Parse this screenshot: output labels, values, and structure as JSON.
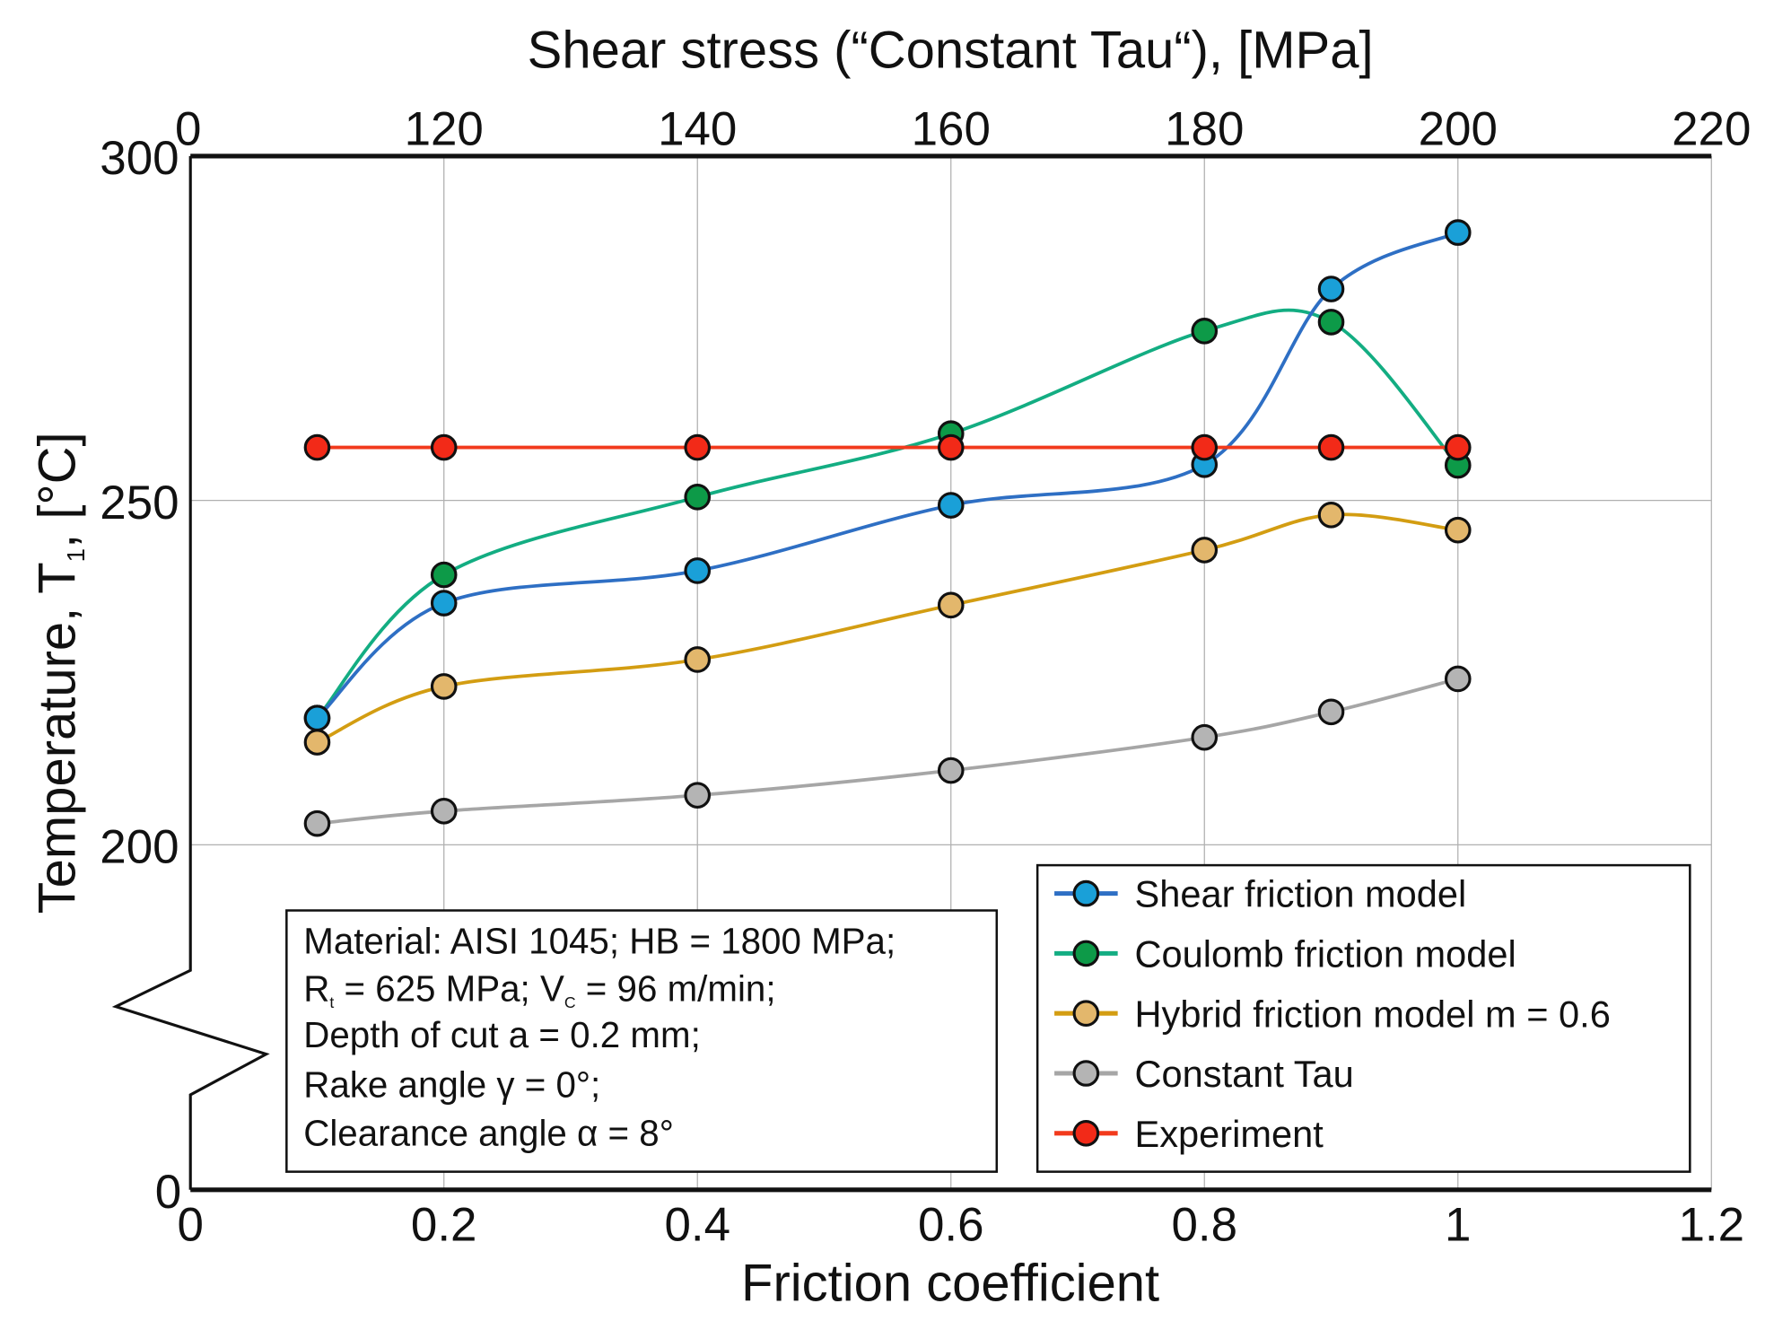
{
  "chart_data": {
    "type": "line",
    "title": "",
    "xlabel": "Friction coefficient",
    "x2label": "Shear stress (“Constant Tau“), [MPa]",
    "ylabel": "Temperature, T",
    "ylabel_sub": "1",
    "ylabel_unit": ", [°C]",
    "xlim": [
      0,
      1.2
    ],
    "ylim": [
      0,
      300
    ],
    "y_axis_break": [
      0,
      200
    ],
    "grid": true,
    "legend_position": "bottom-right",
    "x_ticks": [
      "0",
      "0.2",
      "0.4",
      "0.6",
      "0.8",
      "1",
      "1.2"
    ],
    "x_tick_values": [
      0,
      0.2,
      0.4,
      0.6,
      0.8,
      1.0,
      1.2
    ],
    "x2_ticks": [
      "0",
      "120",
      "140",
      "160",
      "180",
      "200",
      "220"
    ],
    "y_ticks": [
      "300",
      "250",
      "200",
      "0"
    ],
    "y_tick_values": [
      300,
      250,
      200,
      0
    ],
    "x": [
      0.1,
      0.2,
      0.4,
      0.6,
      0.8,
      0.9,
      1.0
    ],
    "series": [
      {
        "name": "Shear friction model",
        "line_color": "#2e6fc4",
        "marker_color": "#1aa0d8",
        "values": [
          218.4,
          235.1,
          239.8,
          249.3,
          255.2,
          280.7,
          288.9
        ]
      },
      {
        "name": "Coulomb friction model",
        "line_color": "#13ad82",
        "marker_color": "#0d9a48",
        "values": [
          218.4,
          239.2,
          250.5,
          259.7,
          274.6,
          275.9,
          255.1
        ]
      },
      {
        "name": "Hybrid friction model  m = 0.6",
        "line_color": "#d39d12",
        "marker_color": "#e3b76c",
        "values": [
          214.9,
          223.0,
          226.9,
          234.8,
          242.8,
          247.9,
          245.7
        ]
      },
      {
        "name": "Constant Tau",
        "line_color": "#a6a6a6",
        "marker_color": "#b4b4b4",
        "values": [
          203.1,
          204.9,
          207.2,
          210.8,
          215.6,
          219.3,
          224.1
        ]
      },
      {
        "name": "Experiment",
        "line_color": "#f23a1c",
        "marker_color": "#f22a18",
        "values": [
          257.7,
          257.7,
          257.7,
          257.7,
          257.7,
          257.7,
          257.7
        ]
      }
    ],
    "annotation": {
      "line1": "Material: AISI 1045; HB = 1800 MPa;",
      "line2_a": "R",
      "line2_sub1": "t",
      "line2_b": " = 625 MPa; V",
      "line2_sub2": "C",
      "line2_c": " = 96 m/min;",
      "line3": "Depth of cut a = 0.2 mm;",
      "line4": "Rake angle γ = 0°;",
      "line5": "Clearance angle α = 8°"
    }
  }
}
